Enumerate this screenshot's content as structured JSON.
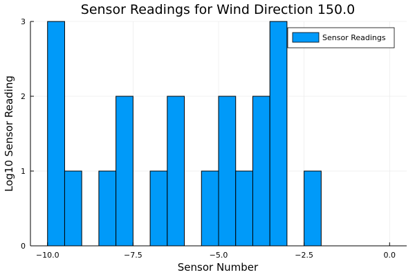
{
  "chart_data": {
    "type": "bar",
    "title": "Sensor Readings for Wind Direction 150.0",
    "xlabel": "Sensor Number",
    "ylabel": "Log10 Sensor Reading",
    "xlim": [
      -10.5,
      0.5
    ],
    "ylim": [
      0,
      3
    ],
    "xticks": [
      -10.0,
      -7.5,
      -5.0,
      -2.5,
      0.0
    ],
    "xtick_labels": [
      "−10.0",
      "−7.5",
      "−5.0",
      "−2.5",
      "0.0"
    ],
    "yticks": [
      0,
      1,
      2,
      3
    ],
    "ytick_labels": [
      "0",
      "1",
      "2",
      "3"
    ],
    "grid": true,
    "legend_position": "top-right",
    "bar_color": "#009af9",
    "series": [
      {
        "name": "Sensor Readings",
        "bins": [
          {
            "x0": -10.0,
            "x1": -9.5,
            "value": 3
          },
          {
            "x0": -9.5,
            "x1": -9.0,
            "value": 1
          },
          {
            "x0": -8.5,
            "x1": -8.0,
            "value": 1
          },
          {
            "x0": -8.0,
            "x1": -7.5,
            "value": 2
          },
          {
            "x0": -7.0,
            "x1": -6.5,
            "value": 1
          },
          {
            "x0": -6.5,
            "x1": -6.0,
            "value": 2
          },
          {
            "x0": -5.5,
            "x1": -5.0,
            "value": 1
          },
          {
            "x0": -5.0,
            "x1": -4.5,
            "value": 2
          },
          {
            "x0": -4.5,
            "x1": -4.0,
            "value": 1
          },
          {
            "x0": -4.0,
            "x1": -3.5,
            "value": 2
          },
          {
            "x0": -3.5,
            "x1": -3.0,
            "value": 3
          },
          {
            "x0": -2.5,
            "x1": -2.0,
            "value": 1
          }
        ]
      }
    ]
  }
}
